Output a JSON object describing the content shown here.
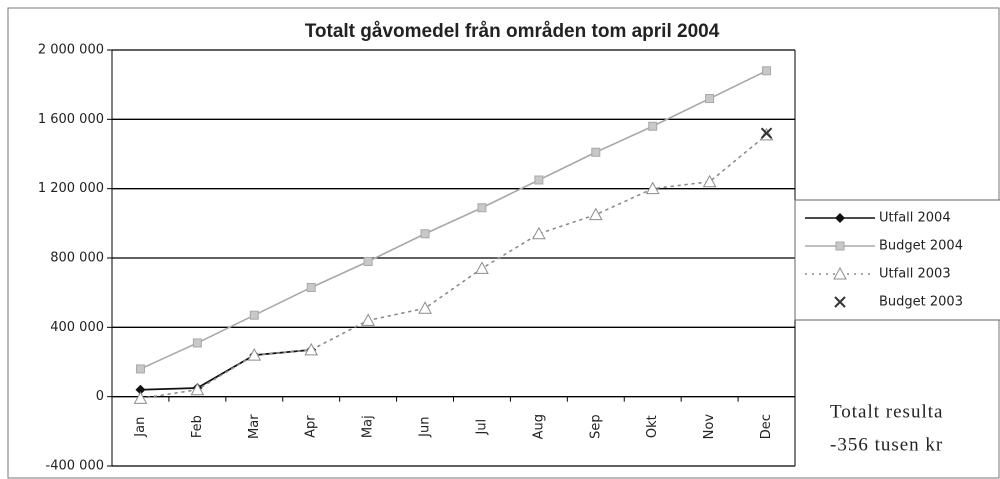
{
  "chart_data": {
    "type": "line",
    "title": "Totalt gåvomedel från områden tom april 2004",
    "categories": [
      "Jan",
      "Feb",
      "Mar",
      "Apr",
      "Maj",
      "Jun",
      "Jul",
      "Aug",
      "Sep",
      "Okt",
      "Nov",
      "Dec"
    ],
    "series": [
      {
        "name": "Utfall 2004",
        "color": "#111111",
        "marker": "diamond",
        "dash": "solid",
        "values": [
          40000,
          50000,
          240000,
          270000,
          null,
          null,
          null,
          null,
          null,
          null,
          null,
          null
        ]
      },
      {
        "name": "Budget 2004",
        "color": "#a8a8a8",
        "marker": "square",
        "dash": "solid",
        "values": [
          160000,
          310000,
          470000,
          630000,
          780000,
          940000,
          1090000,
          1250000,
          1410000,
          1560000,
          1720000,
          1880000
        ]
      },
      {
        "name": "Utfall 2003",
        "color": "#8c8c8c",
        "marker": "triangle",
        "dash": "dotted",
        "values": [
          -10000,
          40000,
          240000,
          270000,
          440000,
          510000,
          740000,
          940000,
          1050000,
          1200000,
          1240000,
          1510000
        ]
      },
      {
        "name": "Budget 2003",
        "color": "#333333",
        "marker": "x",
        "dash": "none",
        "values": [
          null,
          null,
          null,
          null,
          null,
          null,
          null,
          null,
          null,
          null,
          null,
          1520000
        ]
      }
    ],
    "ylim": [
      -400000,
      2000000
    ],
    "yticks": [
      {
        "value": -400000,
        "label": "-400 000"
      },
      {
        "value": 0,
        "label": "0"
      },
      {
        "value": 400000,
        "label": "400 000"
      },
      {
        "value": 800000,
        "label": "800 000"
      },
      {
        "value": 1200000,
        "label": "1 200 000"
      },
      {
        "value": 1600000,
        "label": "1 600 000"
      },
      {
        "value": 2000000,
        "label": "2 000 000"
      }
    ],
    "grid": true,
    "legend": "right",
    "annotations": [
      "Totalt resulta",
      "-356 tusen kr"
    ]
  }
}
